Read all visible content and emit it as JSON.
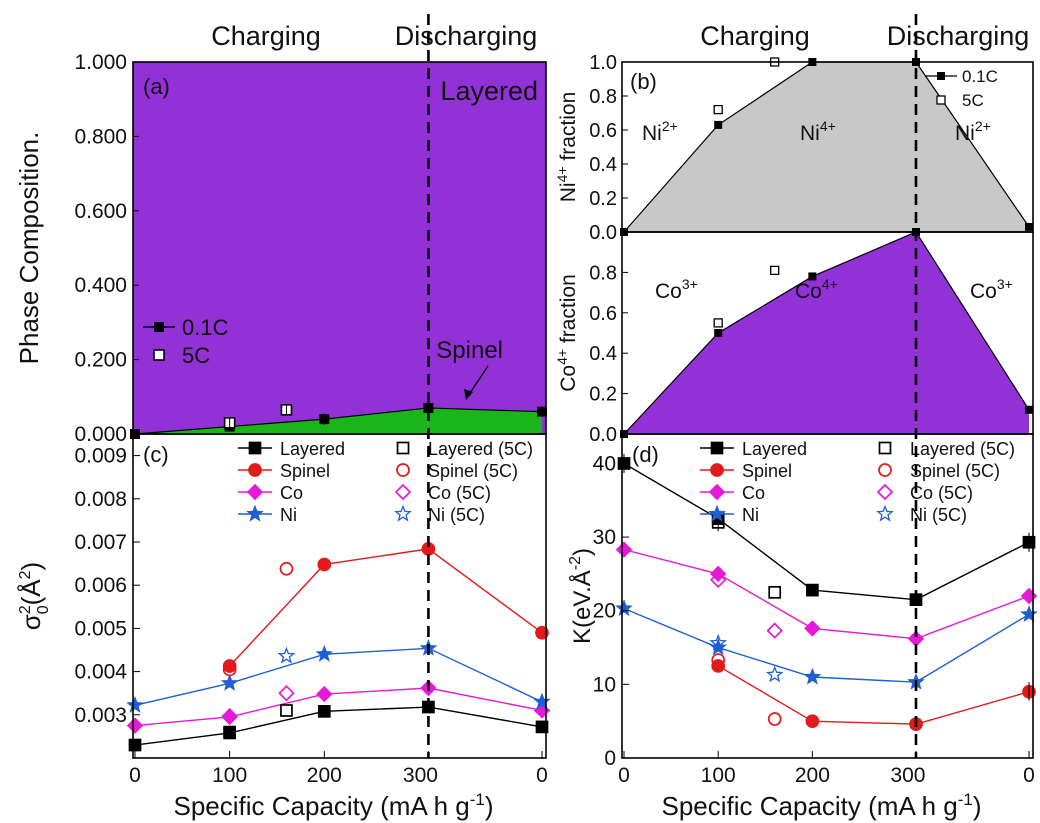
{
  "headers": {
    "charging": "Charging",
    "discharging": "Discharging"
  },
  "x_axis": {
    "label": "Specific Capacity (mA h g",
    "label_sup": "-1",
    "label_close": ")",
    "ticks": [
      "0",
      "100",
      "200",
      "300",
      "0"
    ]
  },
  "colors": {
    "layered": "#000000",
    "spinel": "#e31a1c",
    "co": "#e519d6",
    "ni": "#1f5fd1",
    "purple_fill": "#9131d6",
    "gray_fill": "#c8c8c8",
    "green_fill": "#1bb51b",
    "spinel_label": "#1bb51b",
    "layered_label": "#ffffff"
  },
  "chart_data": [
    {
      "panel": "a",
      "type": "area",
      "panel_label": "(a)",
      "ylabel": "Phase Composition.",
      "ylim": [
        0,
        1
      ],
      "yticks": [
        "0.000",
        "0.200",
        "0.400",
        "0.600",
        "0.800",
        "1.000"
      ],
      "area_labels": {
        "layered": "Layered",
        "spinel": "Spinel"
      },
      "series": [
        {
          "name": "0.1C",
          "x": [
            0,
            100,
            200,
            310,
            430
          ],
          "y": [
            0.0,
            0.02,
            0.04,
            0.07,
            0.06
          ]
        },
        {
          "name": "5C",
          "x": [
            100,
            160
          ],
          "y": [
            0.03,
            0.065
          ]
        }
      ],
      "legend": [
        "0.1C",
        "5C"
      ]
    },
    {
      "panel": "b-top",
      "type": "area",
      "panel_label": "(b)",
      "ylabel": "Ni",
      "ylabel_sup": "4+",
      "ylabel_rest": " fraction",
      "ylim": [
        0,
        1
      ],
      "yticks": [
        "0.0",
        "0.2",
        "0.4",
        "0.6",
        "0.8",
        "1.0"
      ],
      "annotations": [
        "Ni",
        "Ni",
        "Ni"
      ],
      "annotation_sups": [
        "2+",
        "4+",
        "2+"
      ],
      "series": [
        {
          "name": "0.1C",
          "x": [
            0,
            100,
            200,
            310,
            430
          ],
          "y": [
            0.0,
            0.63,
            1.0,
            1.0,
            0.03
          ]
        },
        {
          "name": "5C",
          "x": [
            100,
            160
          ],
          "y": [
            0.72,
            1.0
          ]
        }
      ],
      "legend": [
        "0.1C",
        "5C"
      ]
    },
    {
      "panel": "b-bottom",
      "type": "area",
      "ylabel": "Co",
      "ylabel_sup": "4+",
      "ylabel_rest": " fraction",
      "ylim": [
        0,
        1
      ],
      "yticks": [
        "0.0",
        "0.2",
        "0.4",
        "0.6",
        "0.8"
      ],
      "annotations": [
        "Co",
        "Co",
        "Co"
      ],
      "annotation_sups": [
        "3+",
        "4+",
        "3+"
      ],
      "series": [
        {
          "name": "0.1C",
          "x": [
            0,
            100,
            200,
            310,
            430
          ],
          "y": [
            0.0,
            0.5,
            0.78,
            1.0,
            0.12
          ]
        },
        {
          "name": "5C",
          "x": [
            100,
            160
          ],
          "y": [
            0.55,
            0.81
          ]
        }
      ]
    },
    {
      "panel": "c",
      "type": "line",
      "panel_label": "(c)",
      "ylabel": "σ",
      "ylabel_sub": "0",
      "ylabel_sup": "2",
      "ylabel_unit": "(Å",
      "ylabel_unit_sup": "2",
      "ylabel_close": ")",
      "ylim": [
        0.002,
        0.0095
      ],
      "yticks": [
        "0.003",
        "0.004",
        "0.005",
        "0.006",
        "0.007",
        "0.008",
        "0.009"
      ],
      "series": [
        {
          "name": "Layered",
          "x": [
            0,
            100,
            200,
            310,
            430
          ],
          "y": [
            0.0023,
            0.00258,
            0.00308,
            0.00318,
            0.00272
          ]
        },
        {
          "name": "Spinel",
          "x": [
            100,
            200,
            310,
            430
          ],
          "y": [
            0.00413,
            0.00648,
            0.00684,
            0.0049
          ]
        },
        {
          "name": "Co",
          "x": [
            0,
            100,
            200,
            310,
            430
          ],
          "y": [
            0.00275,
            0.00295,
            0.00348,
            0.00362,
            0.0031
          ]
        },
        {
          "name": "Ni",
          "x": [
            0,
            100,
            200,
            310,
            430
          ],
          "y": [
            0.00322,
            0.00373,
            0.0044,
            0.00454,
            0.0033
          ]
        },
        {
          "name": "Layered (5C)",
          "x": [
            100,
            160
          ],
          "y": [
            0.0026,
            0.0031
          ]
        },
        {
          "name": "Spinel (5C)",
          "x": [
            100,
            160
          ],
          "y": [
            0.00405,
            0.00638
          ]
        },
        {
          "name": "Co (5C)",
          "x": [
            100,
            160
          ],
          "y": [
            0.00297,
            0.0035
          ]
        },
        {
          "name": "Ni (5C)",
          "x": [
            160
          ],
          "y": [
            0.00436
          ]
        }
      ],
      "legend": [
        "Layered",
        "Spinel",
        "Co",
        "Ni",
        "Layered (5C)",
        "Spinel (5C)",
        "Co (5C)",
        "Ni (5C)"
      ]
    },
    {
      "panel": "d",
      "type": "line",
      "panel_label": "(d)",
      "ylabel": "K(eV.Å",
      "ylabel_sup": "-2",
      "ylabel_close": ")",
      "ylim": [
        0,
        44
      ],
      "yticks": [
        "0",
        "10",
        "20",
        "30",
        "40"
      ],
      "series": [
        {
          "name": "Layered",
          "x": [
            0,
            100,
            200,
            310,
            430
          ],
          "y": [
            40.0,
            32.5,
            22.8,
            21.5,
            29.3
          ]
        },
        {
          "name": "Spinel",
          "x": [
            100,
            200,
            310,
            430
          ],
          "y": [
            12.5,
            5.0,
            4.6,
            9.0
          ]
        },
        {
          "name": "Co",
          "x": [
            0,
            100,
            200,
            310,
            430
          ],
          "y": [
            28.3,
            25.0,
            17.6,
            16.2,
            22.0
          ]
        },
        {
          "name": "Ni",
          "x": [
            0,
            100,
            200,
            310,
            430
          ],
          "y": [
            20.3,
            15.0,
            11.0,
            10.3,
            19.5
          ]
        },
        {
          "name": "Layered (5C)",
          "x": [
            100,
            160
          ],
          "y": [
            32.0,
            22.5
          ]
        },
        {
          "name": "Spinel (5C)",
          "x": [
            100,
            160
          ],
          "y": [
            13.3,
            5.3
          ]
        },
        {
          "name": "Co (5C)",
          "x": [
            100,
            160
          ],
          "y": [
            24.2,
            17.3
          ]
        },
        {
          "name": "Ni (5C)",
          "x": [
            100,
            160
          ],
          "y": [
            15.6,
            11.3
          ]
        }
      ],
      "legend": [
        "Layered",
        "Spinel",
        "Co",
        "Ni",
        "Layered (5C)",
        "Spinel (5C)",
        "Co (5C)",
        "Ni (5C)"
      ]
    }
  ]
}
